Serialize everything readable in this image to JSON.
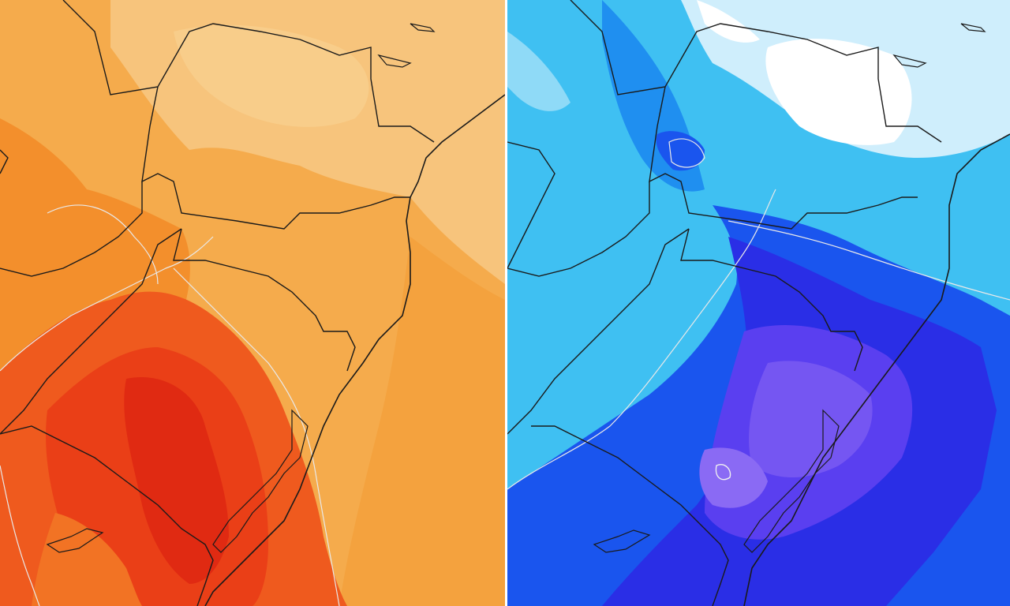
{
  "panels": [
    {
      "id": "left",
      "variable_rendering": "warm-anomaly",
      "palette": [
        "#f6c070",
        "#f5b258",
        "#f4a23e",
        "#f38f2c",
        "#f27324",
        "#ef5a1e",
        "#ea3f17",
        "#e02a12"
      ]
    },
    {
      "id": "right",
      "variable_rendering": "cold-anomaly",
      "palette": [
        "#ffffff",
        "#cfeefc",
        "#8fdaf7",
        "#3fc0f2",
        "#1f8ff0",
        "#1a55ee",
        "#2a2ee6",
        "#5a3ff0",
        "#8a6af4"
      ]
    }
  ],
  "overlays": {
    "borders_color": "#1a1a1a",
    "contour_color": "#e9e9e9"
  }
}
